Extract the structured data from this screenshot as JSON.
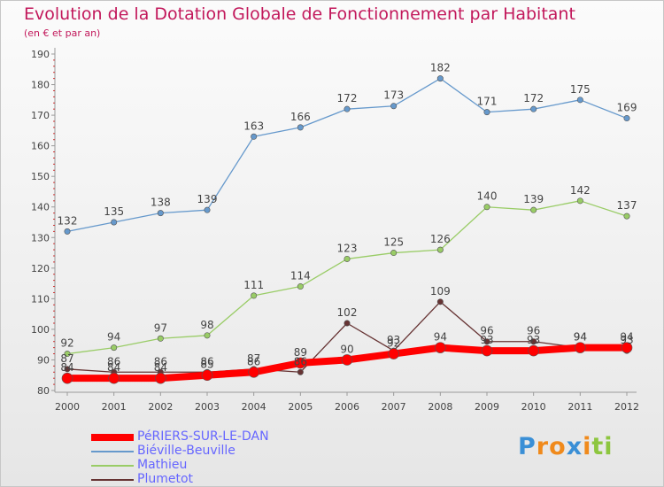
{
  "chart_data": {
    "type": "line",
    "title": "Evolution de la Dotation Globale de Fonctionnement par Habitant",
    "subtitle": "(en € et par an)",
    "x": [
      "2000",
      "2001",
      "2002",
      "2003",
      "2004",
      "2005",
      "2006",
      "2007",
      "2008",
      "2009",
      "2010",
      "2011",
      "2012"
    ],
    "ylim": [
      80,
      190
    ],
    "yticks": [
      80,
      90,
      100,
      110,
      120,
      130,
      140,
      150,
      160,
      170,
      180,
      190
    ],
    "grid": false,
    "legend_position": "bottom-left",
    "series": [
      {
        "name": "Biéville-Beuville",
        "color": "#6699cc",
        "values": [
          132,
          135,
          138,
          139,
          163,
          166,
          172,
          173,
          182,
          171,
          172,
          175,
          169
        ]
      },
      {
        "name": "Mathieu",
        "color": "#99cc66",
        "values": [
          92,
          94,
          97,
          98,
          111,
          114,
          123,
          125,
          126,
          140,
          139,
          142,
          137
        ]
      },
      {
        "name": "Plumetot",
        "color": "#663333",
        "values": [
          87,
          86,
          86,
          86,
          87,
          86,
          102,
          93,
          109,
          96,
          96,
          94,
          93
        ]
      },
      {
        "name": "PéRIERS-SUR-LE-DAN",
        "color": "#ff0000",
        "values": [
          84,
          84,
          84,
          85,
          86,
          89,
          90,
          92,
          94,
          93,
          93,
          94,
          94
        ]
      }
    ]
  },
  "legend": {
    "items": [
      {
        "label": "PéRIERS-SUR-LE-DAN",
        "color": "#ff0000"
      },
      {
        "label": "Biéville-Beuville",
        "color": "#6699cc"
      },
      {
        "label": "Mathieu",
        "color": "#99cc66"
      },
      {
        "label": "Plumetot",
        "color": "#663333"
      }
    ]
  },
  "brand": {
    "letters": [
      {
        "ch": "P",
        "color": "#3a8fd6"
      },
      {
        "ch": "r",
        "color": "#f08a1c"
      },
      {
        "ch": "o",
        "color": "#f08a1c"
      },
      {
        "ch": "x",
        "color": "#3a8fd6"
      },
      {
        "ch": "i",
        "color": "#f08a1c"
      },
      {
        "ch": "t",
        "color": "#8dc63f"
      },
      {
        "ch": "i",
        "color": "#8dc63f"
      }
    ]
  }
}
